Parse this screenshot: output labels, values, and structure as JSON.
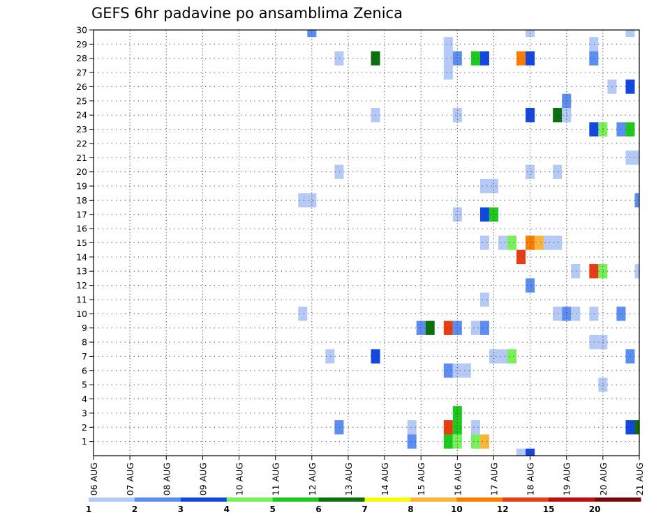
{
  "chart_data": {
    "type": "heatmap",
    "title": "GEFS 6hr padavine po ansamblima Zenica",
    "x_tick_labels": [
      "06 AUG",
      "07 AUG",
      "08 AUG",
      "09 AUG",
      "10 AUG",
      "11 AUG",
      "12 AUG",
      "13 AUG",
      "14 AUG",
      "15 AUG",
      "16 AUG",
      "17 AUG",
      "18 AUG",
      "19 AUG",
      "20 AUG",
      "21 AUG"
    ],
    "y_tick_labels": [
      "1",
      "2",
      "3",
      "4",
      "5",
      "6",
      "7",
      "8",
      "9",
      "10",
      "11",
      "12",
      "13",
      "14",
      "15",
      "16",
      "17",
      "18",
      "19",
      "20",
      "21",
      "22",
      "23",
      "24",
      "25",
      "26",
      "27",
      "28",
      "29",
      "30"
    ],
    "x_unit": "days from 06 AUG, 6-hourly steps",
    "xlim": [
      0,
      15
    ],
    "ylim": [
      0,
      30
    ],
    "grid": true,
    "colorbar": {
      "labels": [
        "1",
        "2",
        "3",
        "4",
        "5",
        "6",
        "7",
        "8",
        "10",
        "12",
        "15",
        "20"
      ],
      "bounds": [
        1,
        2,
        3,
        4,
        5,
        6,
        7,
        8,
        10,
        12,
        15,
        20,
        null
      ],
      "colors": [
        "#b5c9f7",
        "#5b8ef0",
        "#1447e0",
        "#78f05a",
        "#1ec81e",
        "#0b700b",
        "#fafa00",
        "#fab43c",
        "#fa7d00",
        "#e83c14",
        "#be0f0f",
        "#780a0a"
      ]
    },
    "cells": [
      {
        "t": "12 AUG 00Z",
        "m": 30,
        "v": 2.5
      },
      {
        "t": "18 AUG 00Z",
        "m": 30,
        "v": 1.5
      },
      {
        "t": "20 AUG 18Z",
        "m": 30,
        "v": 1.5
      },
      {
        "t": "15 AUG 18Z",
        "m": 29,
        "v": 1.5
      },
      {
        "t": "19 AUG 18Z",
        "m": 29,
        "v": 1.5
      },
      {
        "t": "12 AUG 18Z",
        "m": 28,
        "v": 1.5
      },
      {
        "t": "13 AUG 18Z",
        "m": 28,
        "v": 6.5
      },
      {
        "t": "15 AUG 18Z",
        "m": 28,
        "v": 1.5
      },
      {
        "t": "16 AUG 00Z",
        "m": 28,
        "v": 2.5
      },
      {
        "t": "16 AUG 12Z",
        "m": 28,
        "v": 5.5
      },
      {
        "t": "16 AUG 18Z",
        "m": 28,
        "v": 3.5
      },
      {
        "t": "17 AUG 18Z",
        "m": 28,
        "v": 11
      },
      {
        "t": "18 AUG 00Z",
        "m": 28,
        "v": 3.5
      },
      {
        "t": "19 AUG 18Z",
        "m": 28,
        "v": 2.5
      },
      {
        "t": "15 AUG 18Z",
        "m": 27,
        "v": 1.5
      },
      {
        "t": "20 AUG 06Z",
        "m": 26,
        "v": 1.5
      },
      {
        "t": "20 AUG 18Z",
        "m": 26,
        "v": 3.5
      },
      {
        "t": "19 AUG 00Z",
        "m": 25,
        "v": 2.5
      },
      {
        "t": "13 AUG 18Z",
        "m": 24,
        "v": 1.5
      },
      {
        "t": "16 AUG 00Z",
        "m": 24,
        "v": 1.5
      },
      {
        "t": "18 AUG 00Z",
        "m": 24,
        "v": 3.5
      },
      {
        "t": "18 AUG 18Z",
        "m": 24,
        "v": 6.5
      },
      {
        "t": "19 AUG 00Z",
        "m": 24,
        "v": 1.5
      },
      {
        "t": "19 AUG 18Z",
        "m": 23,
        "v": 3.5
      },
      {
        "t": "20 AUG 00Z",
        "m": 23,
        "v": 4.5
      },
      {
        "t": "20 AUG 12Z",
        "m": 23,
        "v": 2.5
      },
      {
        "t": "20 AUG 18Z",
        "m": 23,
        "v": 5.5
      },
      {
        "t": "20 AUG 18Z",
        "m": 21,
        "v": 1.5
      },
      {
        "t": "21 AUG 00Z",
        "m": 21,
        "v": 1.5
      },
      {
        "t": "12 AUG 18Z",
        "m": 20,
        "v": 1.5
      },
      {
        "t": "18 AUG 00Z",
        "m": 20,
        "v": 1.5
      },
      {
        "t": "18 AUG 18Z",
        "m": 20,
        "v": 1.5
      },
      {
        "t": "16 AUG 18Z",
        "m": 19,
        "v": 1.5
      },
      {
        "t": "17 AUG 00Z",
        "m": 19,
        "v": 1.5
      },
      {
        "t": "11 AUG 18Z",
        "m": 18,
        "v": 1.5
      },
      {
        "t": "12 AUG 00Z",
        "m": 18,
        "v": 1.5
      },
      {
        "t": "21 AUG 00Z",
        "m": 18,
        "v": 2.5
      },
      {
        "t": "16 AUG 00Z",
        "m": 17,
        "v": 1.5
      },
      {
        "t": "16 AUG 18Z",
        "m": 17,
        "v": 3.5
      },
      {
        "t": "17 AUG 00Z",
        "m": 17,
        "v": 5.5
      },
      {
        "t": "16 AUG 18Z",
        "m": 15,
        "v": 1.5
      },
      {
        "t": "17 AUG 06Z",
        "m": 15,
        "v": 1.5
      },
      {
        "t": "17 AUG 12Z",
        "m": 15,
        "v": 4.5
      },
      {
        "t": "18 AUG 00Z",
        "m": 15,
        "v": 11
      },
      {
        "t": "18 AUG 06Z",
        "m": 15,
        "v": 9
      },
      {
        "t": "18 AUG 12Z",
        "m": 15,
        "v": 1.5
      },
      {
        "t": "18 AUG 18Z",
        "m": 15,
        "v": 1.5
      },
      {
        "t": "17 AUG 18Z",
        "m": 14,
        "v": 13
      },
      {
        "t": "19 AUG 06Z",
        "m": 13,
        "v": 1.5
      },
      {
        "t": "19 AUG 18Z",
        "m": 13,
        "v": 13
      },
      {
        "t": "20 AUG 00Z",
        "m": 13,
        "v": 4.5
      },
      {
        "t": "21 AUG 00Z",
        "m": 13,
        "v": 1.5
      },
      {
        "t": "18 AUG 00Z",
        "m": 12,
        "v": 2.5
      },
      {
        "t": "16 AUG 18Z",
        "m": 11,
        "v": 1.5
      },
      {
        "t": "11 AUG 18Z",
        "m": 10,
        "v": 1.5
      },
      {
        "t": "18 AUG 18Z",
        "m": 10,
        "v": 1.5
      },
      {
        "t": "19 AUG 00Z",
        "m": 10,
        "v": 2.5
      },
      {
        "t": "19 AUG 06Z",
        "m": 10,
        "v": 1.5
      },
      {
        "t": "19 AUG 18Z",
        "m": 10,
        "v": 1.5
      },
      {
        "t": "20 AUG 12Z",
        "m": 10,
        "v": 2.5
      },
      {
        "t": "15 AUG 00Z",
        "m": 9,
        "v": 2.5
      },
      {
        "t": "15 AUG 06Z",
        "m": 9,
        "v": 6.5
      },
      {
        "t": "15 AUG 18Z",
        "m": 9,
        "v": 13
      },
      {
        "t": "16 AUG 00Z",
        "m": 9,
        "v": 2.5
      },
      {
        "t": "16 AUG 12Z",
        "m": 9,
        "v": 1.5
      },
      {
        "t": "16 AUG 18Z",
        "m": 9,
        "v": 2.5
      },
      {
        "t": "19 AUG 18Z",
        "m": 8,
        "v": 1.5
      },
      {
        "t": "20 AUG 00Z",
        "m": 8,
        "v": 1.5
      },
      {
        "t": "12 AUG 12Z",
        "m": 7,
        "v": 1.5
      },
      {
        "t": "13 AUG 18Z",
        "m": 7,
        "v": 3.5
      },
      {
        "t": "17 AUG 00Z",
        "m": 7,
        "v": 1.5
      },
      {
        "t": "17 AUG 06Z",
        "m": 7,
        "v": 1.5
      },
      {
        "t": "17 AUG 12Z",
        "m": 7,
        "v": 4.5
      },
      {
        "t": "20 AUG 18Z",
        "m": 7,
        "v": 2.5
      },
      {
        "t": "15 AUG 18Z",
        "m": 6,
        "v": 2.5
      },
      {
        "t": "16 AUG 00Z",
        "m": 6,
        "v": 1.5
      },
      {
        "t": "16 AUG 06Z",
        "m": 6,
        "v": 1.5
      },
      {
        "t": "20 AUG 00Z",
        "m": 5,
        "v": 1.5
      },
      {
        "t": "16 AUG 00Z",
        "m": 3,
        "v": 5.5
      },
      {
        "t": "12 AUG 18Z",
        "m": 2,
        "v": 2.5
      },
      {
        "t": "14 AUG 18Z",
        "m": 2,
        "v": 1.5
      },
      {
        "t": "15 AUG 18Z",
        "m": 2,
        "v": 13
      },
      {
        "t": "16 AUG 00Z",
        "m": 2,
        "v": 5.5
      },
      {
        "t": "16 AUG 12Z",
        "m": 2,
        "v": 1.5
      },
      {
        "t": "20 AUG 18Z",
        "m": 2,
        "v": 3.5
      },
      {
        "t": "21 AUG 00Z",
        "m": 2,
        "v": 6.5
      },
      {
        "t": "14 AUG 18Z",
        "m": 1,
        "v": 2.5
      },
      {
        "t": "15 AUG 18Z",
        "m": 1,
        "v": 5.5
      },
      {
        "t": "16 AUG 00Z",
        "m": 1,
        "v": 4.5
      },
      {
        "t": "16 AUG 12Z",
        "m": 1,
        "v": 4.5
      },
      {
        "t": "16 AUG 18Z",
        "m": 1,
        "v": 9
      },
      {
        "t": "17 AUG 18Z",
        "m": 0,
        "v": 1.5
      },
      {
        "t": "18 AUG 00Z",
        "m": 0,
        "v": 3.5
      }
    ]
  }
}
